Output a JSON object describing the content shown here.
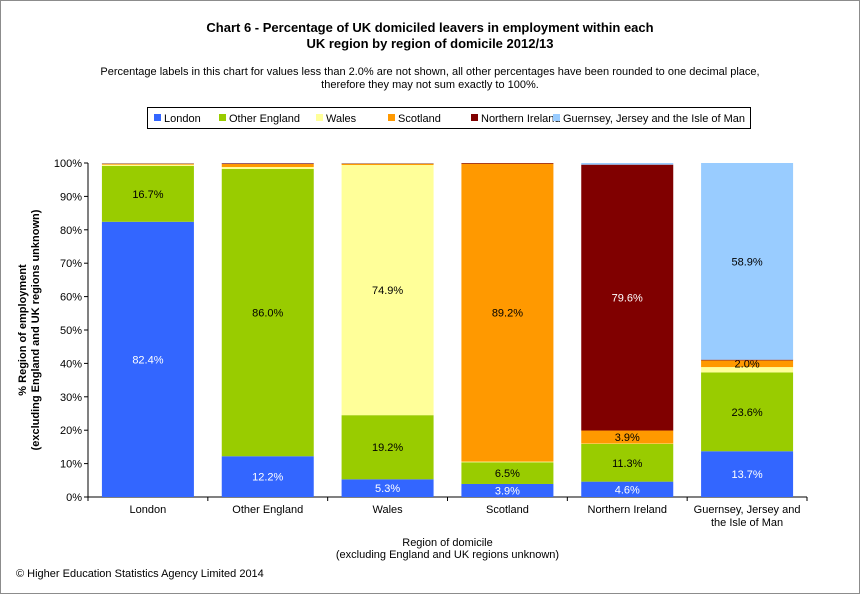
{
  "header": {
    "title_line1": "Chart 6 - Percentage of UK domiciled leavers in employment within each",
    "title_line2": "UK region by region of domicile 2012/13",
    "note_line1": "Percentage labels in this chart for values less than 2.0% are not shown, all other percentages have been rounded to one decimal place,",
    "note_line2": "therefore they may not sum exactly to 100%."
  },
  "footer": {
    "copyright": "© Higher Education Statistics Agency Limited 2014"
  },
  "chart_data": {
    "type": "bar",
    "stacked": true,
    "percent": true,
    "categories": [
      [
        "London"
      ],
      [
        "Other England"
      ],
      [
        "Wales"
      ],
      [
        "Scotland"
      ],
      [
        "Northern Ireland"
      ],
      [
        "Guernsey, Jersey and",
        "the Isle of Man"
      ]
    ],
    "series": [
      {
        "name": "London",
        "color": "#3366FF",
        "values": [
          82.4,
          12.2,
          5.3,
          3.9,
          4.6,
          13.7
        ]
      },
      {
        "name": "Other England",
        "color": "#99CC00",
        "values": [
          16.7,
          86.0,
          19.2,
          6.5,
          11.3,
          23.6
        ]
      },
      {
        "name": "Wales",
        "color": "#FFFF99",
        "values": [
          0.4,
          0.6,
          74.9,
          0.2,
          0.1,
          1.6
        ]
      },
      {
        "name": "Scotland",
        "color": "#FF9900",
        "values": [
          0.3,
          0.9,
          0.4,
          89.2,
          3.9,
          2.0
        ]
      },
      {
        "name": "Northern Ireland",
        "color": "#800000",
        "values": [
          0.1,
          0.2,
          0.1,
          0.2,
          79.6,
          0.2
        ]
      },
      {
        "name": "Guernsey, Jersey and the Isle of Man",
        "color": "#99CCFF",
        "values": [
          0.1,
          0.1,
          0.1,
          0.0,
          0.5,
          58.9
        ]
      }
    ],
    "label_threshold": 2.0,
    "ylim": [
      0,
      100
    ],
    "yticks": [
      "0%",
      "10%",
      "20%",
      "30%",
      "40%",
      "50%",
      "60%",
      "70%",
      "80%",
      "90%",
      "100%"
    ],
    "ylabel_line1": "% Region of employment",
    "ylabel_line2": "(excluding England and UK regions unknown)",
    "xlabel_line1": "Region of domicile",
    "xlabel_line2": "(excluding England and UK regions unknown)",
    "legend_position": "top",
    "grid": false
  }
}
